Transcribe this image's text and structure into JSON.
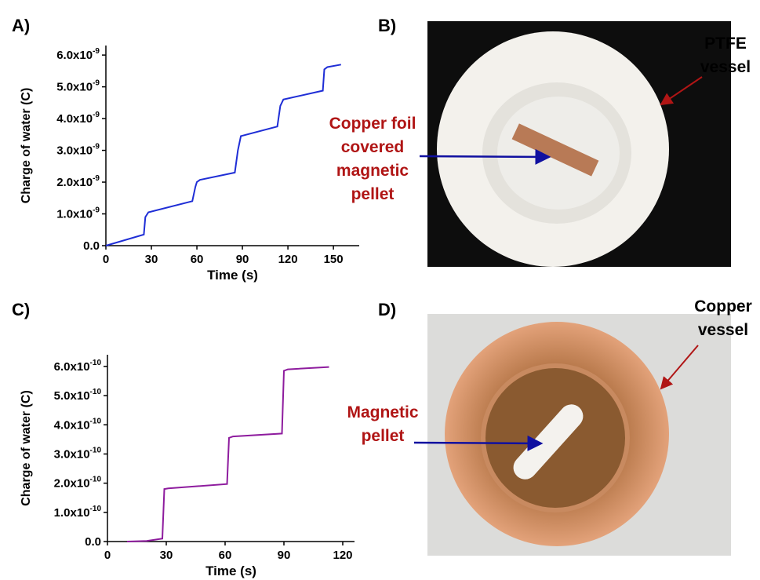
{
  "chart_data": [
    {
      "type": "line",
      "panel": "A)",
      "x_label": "Time (s)",
      "y_label": "Charge of water (C)",
      "x": [
        0,
        25,
        26,
        28,
        57,
        59,
        60,
        62,
        85,
        87,
        89,
        113,
        115,
        117,
        143,
        144,
        146,
        155
      ],
      "series": [
        {
          "color": "#1f2ed6",
          "values": [
            0,
            3.5e-10,
            9e-10,
            1.05e-09,
            1.4e-09,
            1.85e-09,
            2e-09,
            2.07e-09,
            2.3e-09,
            3e-09,
            3.45e-09,
            3.75e-09,
            4.4e-09,
            4.6e-09,
            4.88e-09,
            5.55e-09,
            5.62e-09,
            5.7e-09
          ]
        }
      ],
      "xlim": [
        0,
        167
      ],
      "ylim": [
        0,
        6.3e-09
      ],
      "xticks": [
        0,
        30,
        60,
        90,
        120,
        150
      ],
      "yticks": [
        {
          "value": 0,
          "label": "0.0"
        },
        {
          "value": 1e-09,
          "label": "1.0x10-9"
        },
        {
          "value": 2e-09,
          "label": "2.0x10-9"
        },
        {
          "value": 3e-09,
          "label": "3.0x10-9"
        },
        {
          "value": 4e-09,
          "label": "4.0x10-9"
        },
        {
          "value": 5e-09,
          "label": "5.0x10-9"
        },
        {
          "value": 6e-09,
          "label": "6.0x10-9"
        }
      ]
    },
    {
      "type": "line",
      "panel": "C)",
      "x_label": "Time (s)",
      "y_label": "Charge of water (C)",
      "x": [
        10,
        20,
        28,
        29,
        31,
        61,
        62,
        64,
        89,
        90,
        92,
        113
      ],
      "series": [
        {
          "color": "#8e1c9e",
          "values": [
            0,
            2e-12,
            1e-11,
            1.8e-10,
            1.82e-10,
            1.97e-10,
            3.55e-10,
            3.6e-10,
            3.7e-10,
            5.85e-10,
            5.9e-10,
            5.98e-10
          ]
        }
      ],
      "xlim": [
        0,
        126
      ],
      "ylim": [
        0,
        6.4e-10
      ],
      "xticks": [
        0,
        30,
        60,
        90,
        120
      ],
      "yticks": [
        {
          "value": 0,
          "label": "0.0"
        },
        {
          "value": 1e-10,
          "label": "1.0x10-10"
        },
        {
          "value": 2e-10,
          "label": "2.0x10-10"
        },
        {
          "value": 3e-10,
          "label": "3.0x10-10"
        },
        {
          "value": 4e-10,
          "label": "4.0x10-10"
        },
        {
          "value": 5e-10,
          "label": "5.0x10-10"
        },
        {
          "value": 6e-10,
          "label": "6.0x10-10"
        }
      ]
    }
  ],
  "photos": [
    {
      "panel": "B)",
      "labels": [
        {
          "lines": [
            "Copper foil",
            "covered",
            "magnetic",
            "pellet"
          ]
        },
        {
          "lines": [
            "PTFE",
            "vessel"
          ]
        }
      ]
    },
    {
      "panel": "D)",
      "labels": [
        {
          "lines": [
            "Magnetic",
            "pellet"
          ]
        },
        {
          "lines": [
            "Copper",
            "vessel"
          ]
        }
      ]
    }
  ]
}
